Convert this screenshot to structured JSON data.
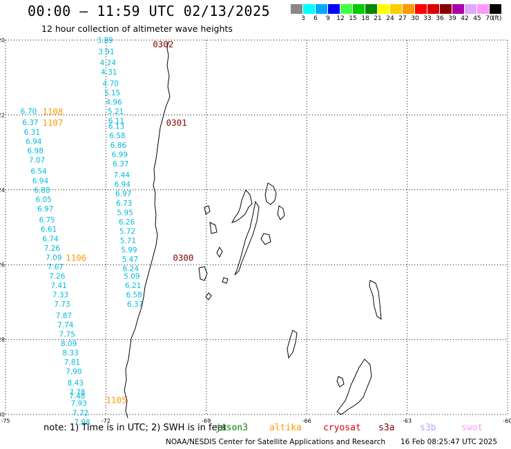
{
  "header": {
    "title": "00:00 – 11:59 UTC 02/13/2025",
    "subtitle": "12 hour collection of altimeter wave heights"
  },
  "colorbar": {
    "colors": [
      "#888888",
      "#00ffff",
      "#00aaff",
      "#0000ff",
      "#44ff44",
      "#00cc00",
      "#008800",
      "#ffff00",
      "#ffcc00",
      "#ff9900",
      "#ff0000",
      "#dd0000",
      "#880000",
      "#aa00aa",
      "#ddaaff",
      "#ff99ff",
      "#000000"
    ],
    "labels": [
      "3",
      "6",
      "9",
      "12",
      "15",
      "18",
      "21",
      "24",
      "27",
      "30",
      "33",
      "36",
      "39",
      "42",
      "45",
      "70"
    ],
    "unit": "(ft)"
  },
  "map": {
    "lat_labels": [
      "-20",
      "-22",
      "-24",
      "-26",
      "-28",
      "-30"
    ],
    "lon_labels": [
      "-75",
      "-72",
      "-69",
      "-66",
      "-63",
      "-60"
    ],
    "lat_range": [
      -30,
      -20
    ],
    "lon_range": [
      -75,
      -60
    ],
    "gridlines": true
  },
  "passes": [
    {
      "id": "0302",
      "color": "#880000",
      "x": -70.6,
      "y": -20.1
    },
    {
      "id": "0301",
      "color": "#880000",
      "x": -70.2,
      "y": -22.2
    },
    {
      "id": "0300",
      "color": "#880000",
      "x": -70.0,
      "y": -25.8
    },
    {
      "id": "1108",
      "color": "#ff9900",
      "x": -73.9,
      "y": -21.9
    },
    {
      "id": "1107",
      "color": "#ff9900",
      "x": -73.9,
      "y": -22.2
    },
    {
      "id": "1106",
      "color": "#ff9900",
      "x": -73.2,
      "y": -25.8
    },
    {
      "id": "1105",
      "color": "#ff9900",
      "x": -72.0,
      "y": -29.6
    }
  ],
  "swh_tracks": [
    {
      "color": "#00bbdd",
      "points": [
        {
          "x": -72.27,
          "y": -20.0,
          "v": "3.89"
        },
        {
          "x": -72.23,
          "y": -20.3,
          "v": "3.91"
        },
        {
          "x": -72.18,
          "y": -20.6,
          "v": "4.24"
        },
        {
          "x": -72.15,
          "y": -20.85,
          "v": "4.31"
        },
        {
          "x": -72.1,
          "y": -21.15,
          "v": "4.70"
        },
        {
          "x": -72.05,
          "y": -21.4,
          "v": "5.15"
        },
        {
          "x": -72.0,
          "y": -21.65,
          "v": "4.96"
        },
        {
          "x": -71.95,
          "y": -21.9,
          "v": "5.21"
        },
        {
          "x": -71.93,
          "y": -22.15,
          "v": "6.11"
        },
        {
          "x": -71.93,
          "y": -22.3,
          "v": "6.13"
        },
        {
          "x": -71.9,
          "y": -22.55,
          "v": "6.58"
        },
        {
          "x": -71.87,
          "y": -22.8,
          "v": "6.86"
        },
        {
          "x": -71.83,
          "y": -23.05,
          "v": "6.99"
        },
        {
          "x": -71.8,
          "y": -23.3,
          "v": "6.37"
        },
        {
          "x": -71.77,
          "y": -23.6,
          "v": "7.44"
        },
        {
          "x": -71.75,
          "y": -23.85,
          "v": "6.94"
        },
        {
          "x": -71.72,
          "y": -24.1,
          "v": "6.97"
        },
        {
          "x": -71.7,
          "y": -24.35,
          "v": "6.73"
        },
        {
          "x": -71.67,
          "y": -24.6,
          "v": "5.95"
        },
        {
          "x": -71.62,
          "y": -24.85,
          "v": "6.26"
        },
        {
          "x": -71.6,
          "y": -25.1,
          "v": "5.72"
        },
        {
          "x": -71.58,
          "y": -25.35,
          "v": "5.71"
        },
        {
          "x": -71.55,
          "y": -25.6,
          "v": "5.99"
        },
        {
          "x": -71.52,
          "y": -25.85,
          "v": "5.47"
        },
        {
          "x": -71.5,
          "y": -26.1,
          "v": "6.24"
        },
        {
          "x": -71.47,
          "y": -26.3,
          "v": "5.09"
        },
        {
          "x": -71.43,
          "y": -26.55,
          "v": "6.21"
        },
        {
          "x": -71.4,
          "y": -26.8,
          "v": "6.58"
        },
        {
          "x": -71.37,
          "y": -27.05,
          "v": "6.37"
        }
      ]
    },
    {
      "color": "#00bbdd",
      "points": [
        {
          "x": -74.55,
          "y": -21.9,
          "v": "6.70"
        },
        {
          "x": -74.5,
          "y": -22.2,
          "v": "6.37"
        },
        {
          "x": -74.45,
          "y": -22.45,
          "v": "6.31"
        },
        {
          "x": -74.4,
          "y": -22.7,
          "v": "6.94"
        },
        {
          "x": -74.35,
          "y": -22.95,
          "v": "6.98"
        },
        {
          "x": -74.3,
          "y": -23.2,
          "v": "7.07"
        },
        {
          "x": -74.25,
          "y": -23.5,
          "v": "6.54"
        },
        {
          "x": -74.2,
          "y": -23.75,
          "v": "6.94"
        },
        {
          "x": -74.15,
          "y": -24.0,
          "v": "6.88"
        },
        {
          "x": -74.1,
          "y": -24.25,
          "v": "6.05"
        },
        {
          "x": -74.05,
          "y": -24.5,
          "v": "6.97"
        },
        {
          "x": -74.0,
          "y": -24.8,
          "v": "6.75"
        },
        {
          "x": -73.95,
          "y": -25.05,
          "v": "6.61"
        },
        {
          "x": -73.9,
          "y": -25.3,
          "v": "6.74"
        },
        {
          "x": -73.85,
          "y": -25.55,
          "v": "7.26"
        },
        {
          "x": -73.8,
          "y": -25.8,
          "v": "7.09"
        },
        {
          "x": -73.75,
          "y": -26.05,
          "v": "7.67"
        },
        {
          "x": -73.7,
          "y": -26.3,
          "v": "7.26"
        },
        {
          "x": -73.65,
          "y": -26.55,
          "v": "7.41"
        },
        {
          "x": -73.6,
          "y": -26.8,
          "v": "7.33"
        },
        {
          "x": -73.55,
          "y": -27.05,
          "v": "7.73"
        },
        {
          "x": -73.5,
          "y": -27.35,
          "v": "7.87"
        },
        {
          "x": -73.45,
          "y": -27.6,
          "v": "7.74"
        },
        {
          "x": -73.4,
          "y": -27.85,
          "v": "7.75"
        },
        {
          "x": -73.35,
          "y": -28.1,
          "v": "8.09"
        },
        {
          "x": -73.3,
          "y": -28.35,
          "v": "8.33"
        },
        {
          "x": -73.25,
          "y": -28.6,
          "v": "7.81"
        },
        {
          "x": -73.2,
          "y": -28.85,
          "v": "7.90"
        },
        {
          "x": -73.15,
          "y": -29.15,
          "v": "8.43"
        },
        {
          "x": -73.1,
          "y": -29.4,
          "v": "7.78"
        },
        {
          "x": -73.1,
          "y": -29.5,
          "v": "7.48"
        },
        {
          "x": -73.05,
          "y": -29.7,
          "v": "7.93"
        },
        {
          "x": -73.0,
          "y": -29.95,
          "v": "7.72"
        },
        {
          "x": -72.95,
          "y": -30.2,
          "v": "7.98"
        }
      ]
    }
  ],
  "footer": {
    "note": "note: 1) Time is in UTC; 2) SWH is in feet",
    "satellites": [
      {
        "name": "jason3",
        "color": "#008800"
      },
      {
        "name": "altika",
        "color": "#ff9900"
      },
      {
        "name": "cryosat",
        "color": "#dd0000"
      },
      {
        "name": "s3a",
        "color": "#880000"
      },
      {
        "name": "s3b",
        "color": "#aaaaff"
      },
      {
        "name": "swot",
        "color": "#ff99ff"
      }
    ],
    "credit": "NOAA/NESDIS Center for Satellite Applications and Research",
    "timestamp": "16 Feb 08:25:47 UTC 2025"
  }
}
